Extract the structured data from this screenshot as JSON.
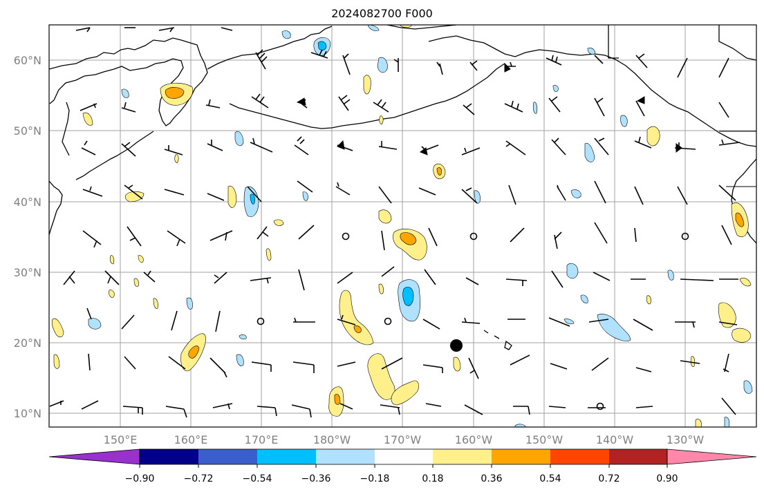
{
  "figure": {
    "title": "2024082700 F000"
  },
  "map": {
    "lon_labels": [
      "150°E",
      "160°E",
      "170°E",
      "180°W",
      "170°W",
      "160°W",
      "150°W",
      "140°W",
      "130°W"
    ],
    "lat_labels": [
      "60°N",
      "50°N",
      "40°N",
      "30°N",
      "20°N",
      "10°N"
    ],
    "colorbar": {
      "ticks": [
        "−0.90",
        "−0.72",
        "−0.54",
        "−0.36",
        "−0.18",
        "0.18",
        "0.36",
        "0.54",
        "0.72",
        "0.90"
      ],
      "colors": [
        "#9932cc",
        "#00008b",
        "#3a5fcd",
        "#00bfff",
        "#b0e2ff",
        "#ffffff",
        "#fff08c",
        "#ffa500",
        "#ff4500",
        "#b22222",
        "#ff88aa"
      ]
    },
    "colors": {
      "land_outline": "#000000",
      "grid": "#a0a0a0",
      "light_yellow": "#fff08c",
      "orange": "#ffa500",
      "light_blue": "#b0e2ff",
      "cyan": "#00bfff",
      "marker": "#000000"
    }
  }
}
